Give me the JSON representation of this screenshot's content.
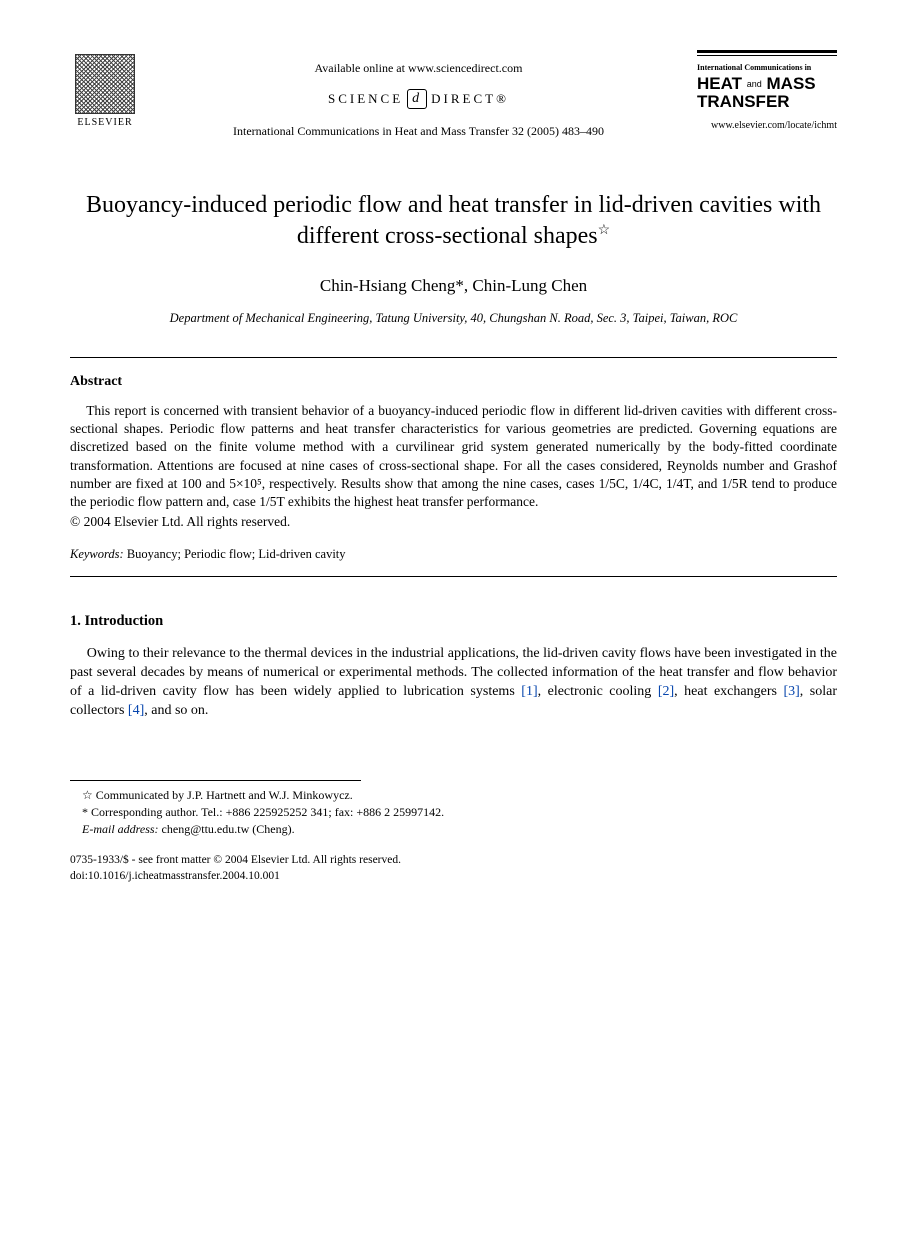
{
  "header": {
    "publisher_name": "ELSEVIER",
    "available_online": "Available online at www.sciencedirect.com",
    "science_direct_left": "SCIENCE",
    "science_direct_right": "DIRECT®",
    "citation_line": "International Communications in Heat and Mass Transfer 32 (2005) 483–490",
    "journal_small": "International Communications in",
    "journal_line1": "HEAT",
    "journal_and": "and",
    "journal_line2": "MASS",
    "journal_line3": "TRANSFER",
    "journal_url": "www.elsevier.com/locate/ichmt"
  },
  "title": "Buoyancy-induced periodic flow and heat transfer in lid-driven cavities with different cross-sectional shapes",
  "title_star": "☆",
  "authors": "Chin-Hsiang Cheng*, Chin-Lung Chen",
  "affiliation": "Department of Mechanical Engineering, Tatung University, 40, Chungshan N. Road, Sec. 3, Taipei, Taiwan, ROC",
  "abstract": {
    "heading": "Abstract",
    "body": "This report is concerned with transient behavior of a buoyancy-induced periodic flow in different lid-driven cavities with different cross-sectional shapes. Periodic flow patterns and heat transfer characteristics for various geometries are predicted. Governing equations are discretized based on the finite volume method with a curvilinear grid system generated numerically by the body-fitted coordinate transformation. Attentions are focused at nine cases of cross-sectional shape. For all the cases considered, Reynolds number and Grashof number are fixed at 100 and 5×10⁵, respectively. Results show that among the nine cases, cases 1/5C, 1/4C, 1/4T, and 1/5R tend to produce the periodic flow pattern and, case 1/5T exhibits the highest heat transfer performance.",
    "copyright": "© 2004 Elsevier Ltd. All rights reserved."
  },
  "keywords": {
    "label": "Keywords:",
    "value": "Buoyancy; Periodic flow; Lid-driven cavity"
  },
  "section1": {
    "heading": "1. Introduction",
    "para": "Owing to their relevance to the thermal devices in the industrial applications, the lid-driven cavity flows have been investigated in the past several decades by means of numerical or experimental methods. The collected information of the heat transfer and flow behavior of a lid-driven cavity flow has been widely applied to lubrication systems ",
    "ref1": "[1]",
    "para2": ", electronic cooling ",
    "ref2": "[2]",
    "para3": ", heat exchangers ",
    "ref3": "[3]",
    "para4": ", solar collectors ",
    "ref4": "[4]",
    "para5": ", and so on."
  },
  "footnotes": {
    "communicated": "☆ Communicated by J.P. Hartnett and W.J. Minkowycz.",
    "corresponding": "* Corresponding author. Tel.: +886 225925252 341; fax: +886 2 25997142.",
    "email_label": "E-mail address:",
    "email_value": "cheng@ttu.edu.tw (Cheng)."
  },
  "footer": {
    "line1": "0735-1933/$ - see front matter © 2004 Elsevier Ltd. All rights reserved.",
    "line2": "doi:10.1016/j.icheatmasstransfer.2004.10.001"
  }
}
